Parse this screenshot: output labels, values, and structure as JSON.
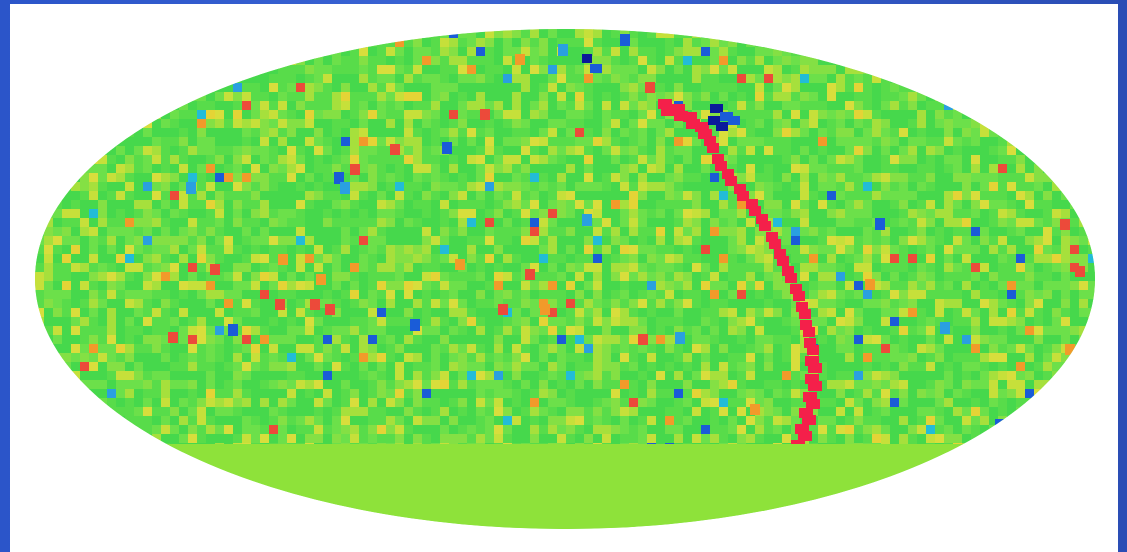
{
  "image": {
    "subject": "all-sky-map",
    "projection": "mollweide",
    "colors": {
      "frame": "#2b55c9",
      "background": "#ffffff",
      "base_green": "#5ede4a",
      "lower_band": "#8ee23a",
      "palette": [
        "#46d84c",
        "#58dc4a",
        "#6ce04a",
        "#84e044",
        "#a6e03c",
        "#c6e03a",
        "#d8de3c",
        "#e4d436",
        "#f29a2a",
        "#ec4a3a",
        "#f4204a",
        "#22bcd8",
        "#2aa0e0",
        "#1a5cd8",
        "#0a1a9a"
      ]
    }
  }
}
